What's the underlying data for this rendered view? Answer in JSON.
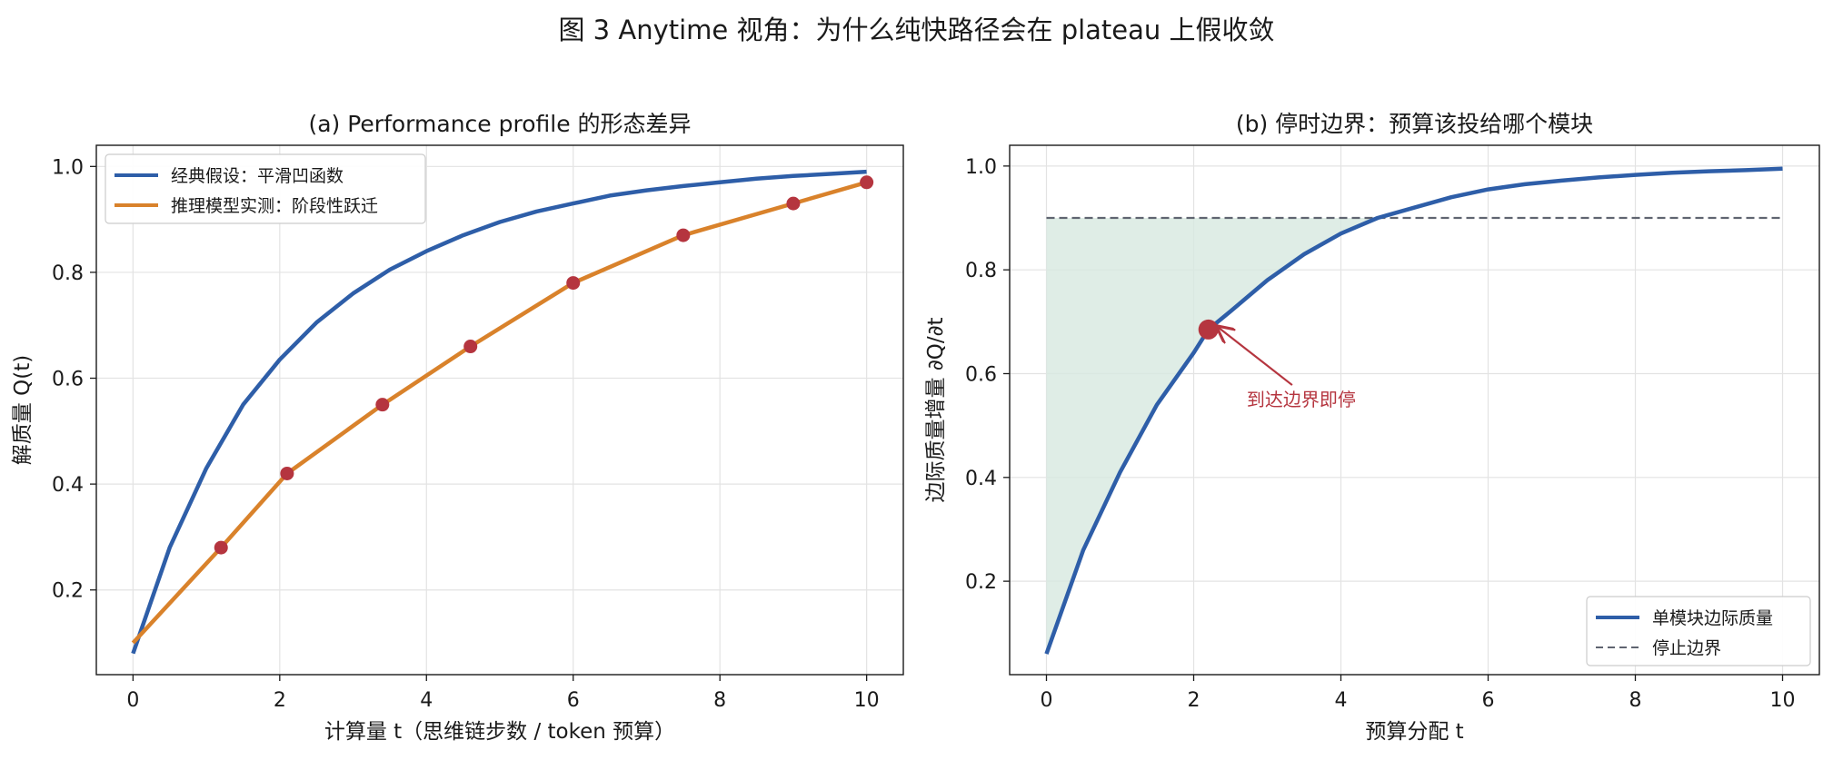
{
  "figure": {
    "title": "图 3  Anytime 视角：为什么纯快路径会在 plateau 上假收敛"
  },
  "colors": {
    "blue": "#2e5ea8",
    "orange": "#d9822b",
    "red": "#b5353f",
    "gray_dash": "#5f6470",
    "fill_green": "#d7e9e0"
  },
  "chart_data": [
    {
      "type": "line",
      "title": "(a) Performance profile 的形态差异",
      "xlabel": "计算量 t（思维链步数 / token 预算）",
      "ylabel": "解质量 Q(t)",
      "xlim": [
        -0.5,
        10.5
      ],
      "ylim": [
        0.04,
        1.04
      ],
      "xticks": [
        0,
        2,
        4,
        6,
        8,
        10
      ],
      "yticks": [
        0.2,
        0.4,
        0.6,
        0.8,
        1.0
      ],
      "grid": true,
      "legend_position": "top-left",
      "series": [
        {
          "name": "经典假设：平滑凹函数",
          "style": "smooth",
          "x": [
            0,
            0.5,
            1,
            1.5,
            2,
            2.5,
            3,
            3.5,
            4,
            4.5,
            5,
            5.5,
            6,
            6.5,
            7,
            7.5,
            8,
            8.5,
            9,
            9.5,
            10
          ],
          "y": [
            0.08,
            0.28,
            0.43,
            0.55,
            0.635,
            0.705,
            0.76,
            0.805,
            0.84,
            0.87,
            0.895,
            0.915,
            0.93,
            0.945,
            0.955,
            0.963,
            0.97,
            0.977,
            0.982,
            0.986,
            0.99
          ]
        },
        {
          "name": "推理模型实测：阶段性跃迁",
          "style": "markers",
          "x": [
            0,
            1.2,
            2.1,
            3.4,
            4.6,
            6.0,
            7.5,
            9.0,
            10.0
          ],
          "y": [
            0.1,
            0.28,
            0.42,
            0.55,
            0.66,
            0.78,
            0.87,
            0.93,
            0.97
          ]
        }
      ]
    },
    {
      "type": "line",
      "title": "(b) 停时边界：预算该投给哪个模块",
      "xlabel": "预算分配 t",
      "ylabel": "边际质量增量 ∂Q/∂t",
      "xlim": [
        -0.5,
        10.5
      ],
      "ylim": [
        0.02,
        1.04
      ],
      "xticks": [
        0,
        2,
        4,
        6,
        8,
        10
      ],
      "yticks": [
        0.2,
        0.4,
        0.6,
        0.8,
        1.0
      ],
      "grid": true,
      "legend_position": "bottom-right",
      "series": [
        {
          "name": "单模块边际质量",
          "style": "smooth",
          "x": [
            0,
            0.5,
            1,
            1.5,
            2,
            2.2,
            2.5,
            3,
            3.5,
            4,
            4.5,
            5,
            5.5,
            6,
            6.5,
            7,
            7.5,
            8,
            8.5,
            9,
            9.5,
            10
          ],
          "y": [
            0.06,
            0.26,
            0.41,
            0.54,
            0.64,
            0.685,
            0.72,
            0.78,
            0.83,
            0.87,
            0.9,
            0.92,
            0.94,
            0.955,
            0.965,
            0.972,
            0.978,
            0.983,
            0.987,
            0.99,
            0.992,
            0.995
          ]
        },
        {
          "name": "停止边界",
          "style": "dashed",
          "x": [
            0,
            10
          ],
          "y": [
            0.9,
            0.9
          ]
        }
      ],
      "shaded_region": {
        "between": "停止边界 and curve",
        "x_from": 0,
        "x_to": 4.5
      },
      "marker_point": {
        "x": 2.2,
        "y": 0.685
      },
      "annotation": {
        "text": "到达边界即停",
        "x": 3.4,
        "y": 0.55
      }
    }
  ]
}
